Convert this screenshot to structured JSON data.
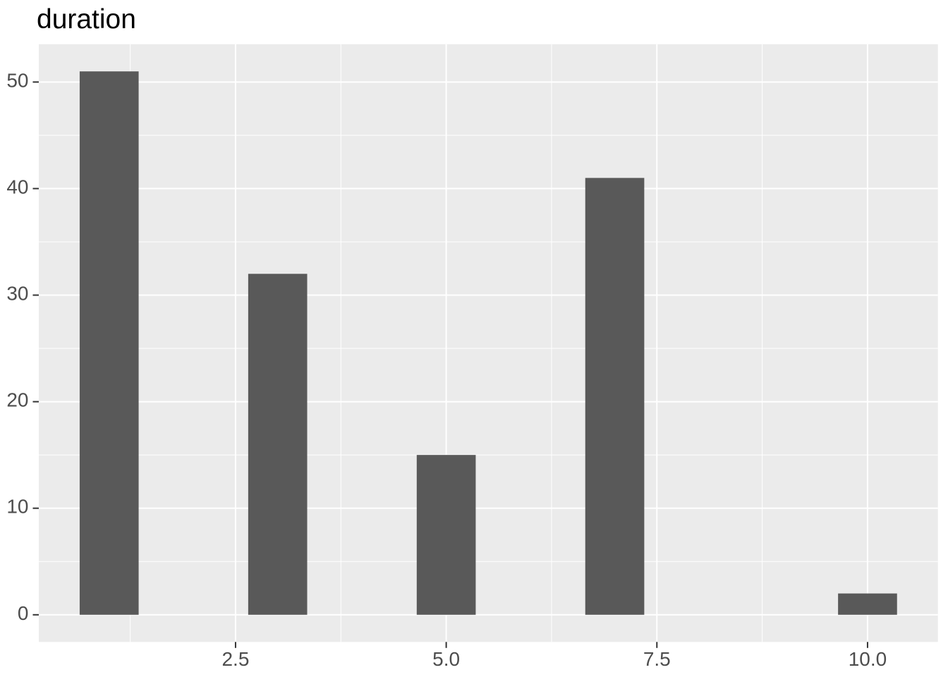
{
  "title": {
    "text": "duration"
  },
  "chart_data": {
    "type": "bar",
    "subtype": "histogram",
    "title": "duration",
    "x": [
      1,
      3,
      5,
      7,
      10
    ],
    "values": [
      51,
      32,
      15,
      41,
      2
    ],
    "bar_width_units": 0.7,
    "xlabel": "",
    "ylabel": "",
    "xlim": [
      0.165,
      10.835
    ],
    "ylim": [
      -2.55,
      53.55
    ],
    "x_major_ticks": [
      2.5,
      5.0,
      7.5,
      10.0
    ],
    "x_tick_labels": [
      "2.5",
      "5.0",
      "7.5",
      "10.0"
    ],
    "x_minor_gridlines": [
      1.25,
      3.75,
      6.25,
      8.75
    ],
    "y_major_ticks": [
      0,
      10,
      20,
      30,
      40,
      50
    ],
    "y_tick_labels": [
      "0",
      "10",
      "20",
      "30",
      "40",
      "50"
    ],
    "y_minor_gridlines": [
      5,
      15,
      25,
      35,
      45
    ],
    "grid": "on",
    "legend": "none",
    "theme": "ggplot2-grey"
  },
  "colors": {
    "page_background": "#FFFFFF",
    "panel_background": "#EBEBEB",
    "grid_major": "#FFFFFF",
    "grid_minor": "#FFFFFF",
    "bar_fill": "#595959",
    "axis_text": "#4D4D4D",
    "tick_mark": "#333333",
    "title_text": "#000000"
  }
}
